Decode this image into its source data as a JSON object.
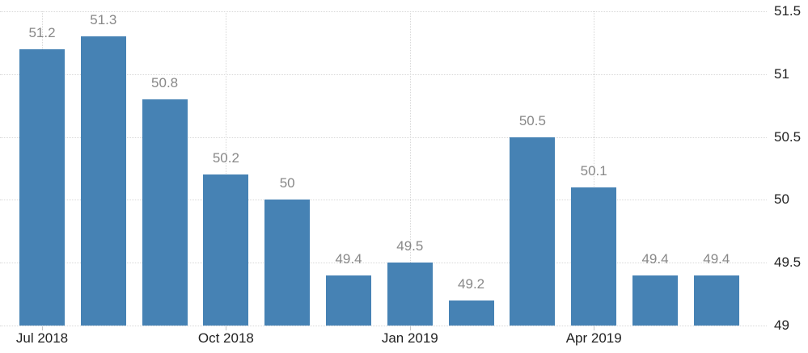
{
  "chart_data": {
    "type": "bar",
    "values": [
      51.2,
      51.3,
      50.8,
      50.2,
      50,
      49.4,
      49.5,
      49.2,
      50.5,
      50.1,
      49.4,
      49.4
    ],
    "value_labels": [
      "51.2",
      "51.3",
      "50.8",
      "50.2",
      "50",
      "49.4",
      "49.5",
      "49.2",
      "50.5",
      "50.1",
      "49.4",
      "49.4"
    ],
    "x_ticks": [
      {
        "bar_index": 0,
        "label": "Jul 2018"
      },
      {
        "bar_index": 3,
        "label": "Oct 2018"
      },
      {
        "bar_index": 6,
        "label": "Jan 2019"
      },
      {
        "bar_index": 9,
        "label": "Apr 2019"
      }
    ],
    "y_ticks": [
      {
        "value": 51.5,
        "label": "51.5"
      },
      {
        "value": 51,
        "label": "51"
      },
      {
        "value": 50.5,
        "label": "50.5"
      },
      {
        "value": 50,
        "label": "50"
      },
      {
        "value": 49.5,
        "label": "49.5"
      },
      {
        "value": 49,
        "label": "49"
      }
    ],
    "ylim": [
      49,
      51.5
    ],
    "y_axis_side": "right",
    "grid": "dotted horizontal lines at each y-tick, dotted vertical lines at quarter ticks",
    "legend": "none",
    "colors": {
      "bar": "#4682b4",
      "value_label": "#888888",
      "axis_label": "#222222",
      "gridline": "#d8d8d8",
      "tick": "#c6c6c6",
      "background": "#ffffff"
    }
  }
}
